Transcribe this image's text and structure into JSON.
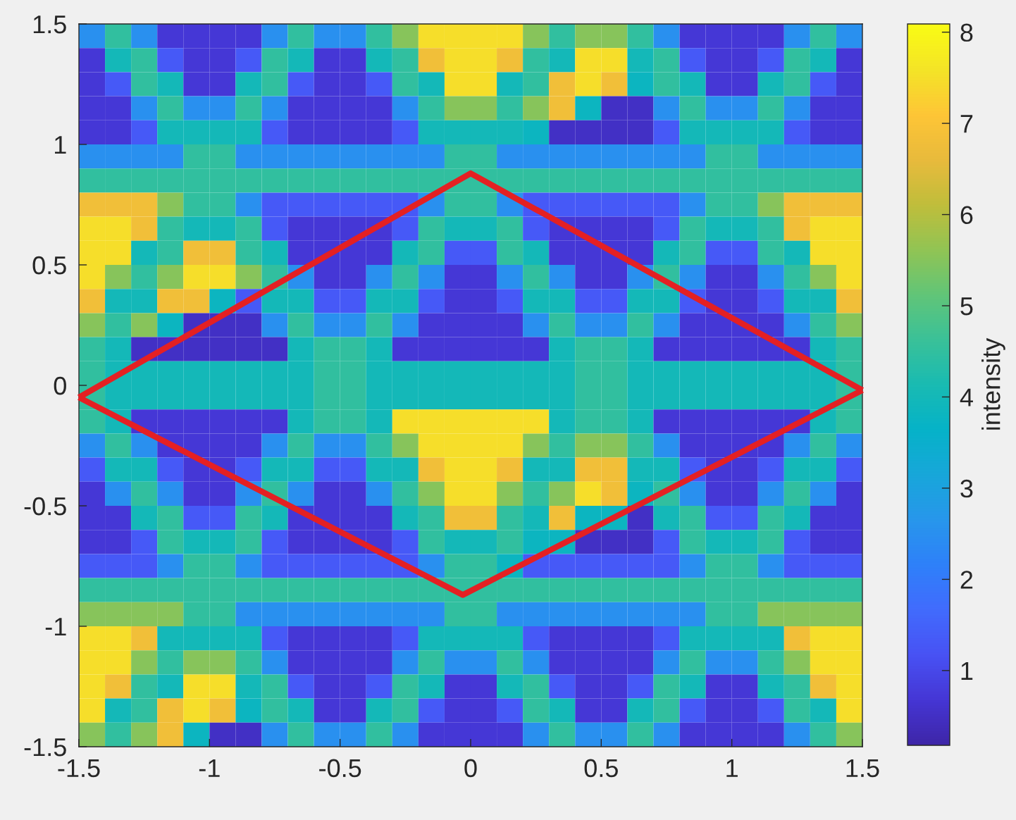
{
  "chart_data": {
    "type": "heatmap",
    "cells": [
      [
        2.5,
        4.5,
        2.5,
        0.7,
        0.7,
        0.7,
        0.7,
        2.5,
        4.5,
        2.5,
        2.5,
        4.5,
        5.5,
        7.5,
        7.5,
        7.5,
        7.5,
        5.5,
        4.5,
        5.5,
        5.5,
        4.5,
        2.5,
        0.7,
        0.7,
        0.7,
        0.7,
        2.5,
        4.5,
        2.5
      ],
      [
        0.7,
        4.0,
        4.5,
        1.3,
        0.7,
        0.7,
        1.3,
        4.5,
        4.0,
        0.7,
        0.7,
        4.0,
        4.5,
        6.8,
        7.5,
        7.5,
        6.8,
        4.5,
        4.0,
        7.5,
        7.5,
        4.0,
        4.5,
        1.3,
        0.7,
        0.7,
        1.3,
        4.5,
        4.0,
        0.7
      ],
      [
        0.7,
        1.3,
        4.5,
        4.0,
        0.7,
        0.7,
        4.0,
        4.5,
        1.3,
        0.7,
        0.7,
        1.3,
        4.5,
        4.0,
        7.5,
        7.5,
        4.0,
        4.5,
        6.8,
        7.5,
        6.8,
        3.8,
        4.5,
        4.0,
        0.7,
        0.7,
        4.0,
        4.5,
        1.3,
        0.7
      ],
      [
        0.7,
        0.7,
        2.5,
        4.5,
        2.5,
        2.5,
        4.5,
        2.5,
        0.7,
        0.7,
        0.7,
        0.7,
        2.5,
        4.5,
        5.5,
        5.5,
        4.5,
        5.5,
        6.8,
        3.8,
        0.5,
        0.5,
        2.5,
        4.5,
        2.5,
        2.5,
        4.5,
        2.5,
        0.7,
        0.7
      ],
      [
        0.7,
        0.7,
        1.3,
        4.0,
        4.0,
        4.0,
        4.0,
        1.3,
        0.7,
        0.7,
        0.7,
        0.7,
        1.3,
        4.0,
        4.0,
        4.0,
        4.0,
        3.8,
        0.5,
        0.5,
        0.5,
        0.5,
        1.3,
        4.0,
        4.0,
        4.0,
        4.0,
        1.3,
        0.7,
        0.7
      ],
      [
        2.5,
        2.5,
        2.5,
        2.5,
        4.5,
        4.5,
        2.5,
        2.5,
        2.5,
        2.5,
        2.5,
        2.5,
        2.5,
        2.5,
        4.5,
        4.5,
        2.5,
        2.5,
        2.5,
        2.5,
        2.5,
        2.5,
        2.5,
        2.5,
        4.5,
        4.5,
        2.5,
        2.5,
        2.5,
        2.5
      ],
      [
        4.5,
        4.5,
        4.5,
        4.5,
        4.5,
        4.5,
        4.5,
        4.5,
        4.5,
        4.5,
        4.5,
        4.5,
        4.5,
        4.5,
        4.5,
        4.5,
        4.5,
        4.5,
        4.5,
        4.5,
        4.5,
        4.5,
        4.5,
        4.5,
        4.5,
        4.5,
        4.5,
        4.5,
        4.5,
        4.5
      ],
      [
        6.8,
        6.8,
        6.8,
        5.5,
        4.5,
        4.5,
        2.5,
        1.3,
        1.3,
        1.3,
        1.3,
        1.3,
        1.3,
        2.5,
        4.5,
        4.5,
        2.5,
        1.3,
        1.3,
        1.3,
        1.3,
        1.3,
        1.3,
        2.5,
        4.5,
        4.5,
        5.5,
        6.8,
        6.8,
        6.8
      ],
      [
        7.5,
        7.5,
        6.8,
        4.5,
        4.0,
        4.0,
        4.5,
        1.3,
        0.7,
        0.7,
        0.7,
        0.7,
        1.3,
        4.5,
        4.0,
        4.0,
        4.5,
        1.3,
        0.7,
        0.7,
        0.7,
        0.7,
        1.3,
        4.5,
        4.0,
        4.0,
        4.5,
        6.8,
        7.5,
        7.5
      ],
      [
        7.5,
        7.5,
        4.0,
        4.5,
        6.8,
        6.8,
        4.5,
        4.0,
        0.7,
        0.7,
        0.7,
        0.7,
        4.0,
        4.5,
        1.3,
        1.3,
        4.5,
        4.0,
        0.7,
        0.7,
        0.7,
        0.7,
        4.0,
        4.5,
        1.3,
        1.3,
        4.5,
        4.0,
        7.5,
        7.5
      ],
      [
        7.5,
        5.5,
        4.5,
        5.5,
        7.5,
        7.5,
        5.5,
        4.5,
        2.5,
        0.7,
        0.7,
        2.5,
        4.5,
        2.5,
        0.7,
        0.7,
        2.5,
        4.5,
        2.5,
        0.7,
        0.7,
        2.5,
        4.5,
        2.5,
        0.7,
        0.7,
        2.5,
        4.5,
        5.5,
        7.5
      ],
      [
        6.8,
        4.0,
        4.0,
        6.8,
        6.8,
        3.8,
        1.3,
        4.0,
        4.0,
        1.3,
        1.3,
        4.0,
        4.0,
        1.3,
        0.7,
        0.7,
        1.3,
        4.0,
        4.0,
        1.3,
        1.3,
        4.0,
        4.0,
        1.3,
        0.7,
        0.7,
        1.3,
        4.0,
        4.0,
        6.8
      ],
      [
        5.5,
        4.5,
        5.5,
        3.8,
        0.5,
        0.5,
        0.5,
        2.5,
        4.5,
        2.5,
        2.5,
        4.5,
        2.5,
        0.7,
        0.7,
        0.7,
        0.7,
        2.5,
        4.5,
        2.5,
        2.5,
        4.5,
        2.5,
        0.7,
        0.7,
        0.7,
        0.7,
        2.5,
        4.5,
        5.5
      ],
      [
        4.5,
        4.0,
        0.5,
        0.5,
        0.5,
        0.5,
        0.5,
        0.5,
        4.0,
        4.5,
        4.5,
        4.0,
        0.7,
        0.7,
        0.7,
        0.7,
        0.7,
        0.7,
        4.0,
        4.5,
        4.5,
        4.0,
        0.7,
        0.7,
        0.7,
        0.7,
        0.7,
        0.7,
        4.0,
        4.5
      ],
      [
        4.5,
        4.0,
        4.0,
        4.0,
        4.0,
        4.0,
        4.0,
        4.0,
        4.0,
        4.5,
        4.5,
        4.0,
        4.0,
        4.0,
        4.0,
        4.0,
        4.0,
        4.0,
        4.0,
        4.5,
        4.5,
        4.0,
        4.0,
        4.0,
        4.0,
        4.0,
        4.0,
        4.0,
        4.0,
        4.5
      ],
      [
        4.5,
        4.0,
        4.0,
        4.0,
        4.0,
        4.0,
        4.0,
        4.0,
        4.0,
        4.5,
        4.5,
        4.0,
        4.0,
        4.0,
        4.0,
        4.0,
        4.0,
        4.0,
        4.0,
        4.5,
        4.5,
        4.0,
        4.0,
        4.0,
        4.0,
        4.0,
        4.0,
        4.0,
        4.0,
        4.5
      ],
      [
        4.5,
        4.0,
        0.7,
        0.7,
        0.7,
        0.7,
        0.7,
        0.7,
        4.0,
        4.5,
        4.5,
        4.0,
        7.5,
        7.5,
        7.5,
        7.5,
        7.5,
        7.5,
        4.0,
        4.5,
        4.5,
        4.0,
        0.7,
        0.7,
        0.7,
        0.7,
        0.7,
        0.7,
        4.0,
        4.5
      ],
      [
        2.5,
        4.5,
        2.5,
        0.7,
        0.7,
        0.7,
        0.7,
        2.5,
        4.5,
        2.5,
        2.5,
        4.5,
        5.5,
        7.5,
        7.5,
        7.5,
        7.5,
        5.5,
        4.5,
        5.5,
        5.5,
        4.5,
        2.5,
        0.7,
        0.7,
        0.7,
        0.7,
        2.5,
        4.5,
        2.5
      ],
      [
        1.3,
        4.0,
        4.0,
        1.3,
        0.7,
        0.7,
        1.3,
        4.0,
        4.0,
        1.3,
        1.3,
        4.0,
        4.0,
        6.8,
        7.5,
        7.5,
        6.8,
        4.0,
        4.0,
        6.8,
        6.8,
        4.0,
        4.0,
        1.3,
        0.7,
        0.7,
        1.3,
        4.0,
        4.0,
        1.3
      ],
      [
        0.7,
        2.5,
        4.5,
        2.5,
        0.7,
        0.7,
        2.5,
        4.5,
        2.5,
        0.7,
        0.7,
        2.5,
        4.5,
        5.5,
        7.5,
        7.5,
        5.5,
        4.5,
        5.5,
        7.5,
        6.8,
        3.8,
        4.5,
        2.5,
        0.7,
        0.7,
        2.5,
        4.5,
        2.5,
        0.7
      ],
      [
        0.7,
        0.7,
        4.0,
        4.5,
        1.3,
        1.3,
        4.5,
        4.0,
        0.7,
        0.7,
        0.7,
        0.7,
        4.0,
        4.5,
        6.8,
        6.8,
        4.5,
        4.0,
        6.8,
        3.8,
        3.8,
        0.5,
        4.0,
        4.5,
        1.3,
        1.3,
        4.5,
        4.0,
        0.7,
        0.7
      ],
      [
        0.7,
        0.7,
        1.3,
        4.5,
        4.0,
        4.0,
        4.5,
        1.3,
        0.7,
        0.7,
        0.7,
        0.7,
        1.3,
        4.5,
        4.0,
        4.0,
        4.5,
        3.8,
        3.8,
        0.5,
        0.5,
        0.5,
        1.3,
        4.5,
        4.0,
        4.0,
        4.5,
        1.3,
        0.7,
        0.7
      ],
      [
        1.3,
        1.3,
        1.3,
        2.5,
        4.5,
        4.5,
        2.5,
        1.3,
        1.3,
        1.3,
        1.3,
        1.3,
        1.3,
        2.5,
        4.5,
        4.5,
        3.8,
        1.3,
        1.3,
        1.3,
        1.3,
        1.3,
        1.3,
        2.5,
        4.5,
        4.5,
        2.5,
        1.3,
        1.3,
        1.3
      ],
      [
        4.5,
        4.5,
        4.5,
        4.5,
        4.5,
        4.5,
        4.5,
        4.5,
        4.5,
        4.5,
        4.5,
        4.5,
        4.5,
        4.5,
        4.5,
        4.5,
        4.5,
        4.5,
        4.5,
        4.5,
        4.5,
        4.5,
        4.5,
        4.5,
        4.5,
        4.5,
        4.5,
        4.5,
        4.5,
        4.5
      ],
      [
        5.5,
        5.5,
        5.5,
        5.5,
        4.5,
        4.5,
        2.5,
        2.5,
        2.5,
        2.5,
        2.5,
        2.5,
        2.5,
        2.5,
        4.5,
        4.5,
        2.5,
        2.5,
        2.5,
        2.5,
        2.5,
        2.5,
        2.5,
        2.5,
        4.5,
        4.5,
        5.5,
        5.5,
        5.5,
        5.5
      ],
      [
        7.5,
        7.5,
        6.8,
        4.0,
        4.0,
        4.0,
        4.0,
        1.3,
        0.7,
        0.7,
        0.7,
        0.7,
        1.3,
        4.0,
        4.0,
        4.0,
        4.0,
        1.3,
        0.7,
        0.7,
        0.7,
        0.7,
        1.3,
        4.0,
        4.0,
        4.0,
        4.0,
        6.8,
        7.5,
        7.5
      ],
      [
        7.5,
        7.5,
        5.5,
        4.5,
        5.5,
        5.5,
        4.5,
        2.5,
        0.7,
        0.7,
        0.7,
        0.7,
        2.5,
        4.5,
        2.5,
        2.5,
        4.5,
        2.5,
        0.7,
        0.7,
        0.7,
        0.7,
        2.5,
        4.5,
        2.5,
        2.5,
        4.5,
        5.5,
        7.5,
        7.5
      ],
      [
        7.5,
        6.8,
        4.5,
        4.0,
        7.5,
        7.5,
        4.0,
        4.5,
        1.3,
        0.7,
        0.7,
        1.3,
        4.5,
        4.0,
        0.7,
        0.7,
        4.0,
        4.5,
        1.3,
        0.7,
        0.7,
        1.3,
        4.5,
        4.0,
        0.7,
        0.7,
        4.0,
        4.5,
        6.8,
        7.5
      ],
      [
        7.5,
        4.0,
        4.5,
        6.8,
        7.5,
        6.8,
        3.8,
        4.5,
        4.0,
        0.7,
        0.7,
        4.0,
        4.5,
        1.3,
        0.7,
        0.7,
        1.3,
        4.5,
        4.0,
        0.7,
        0.7,
        4.0,
        4.5,
        1.3,
        0.7,
        0.7,
        1.3,
        4.5,
        4.0,
        7.5
      ],
      [
        5.5,
        4.5,
        5.5,
        6.8,
        3.8,
        0.5,
        0.5,
        2.5,
        4.5,
        2.5,
        2.5,
        4.5,
        2.5,
        0.7,
        0.7,
        0.7,
        0.7,
        2.5,
        4.5,
        2.5,
        2.5,
        4.5,
        2.5,
        0.7,
        0.7,
        0.7,
        0.7,
        2.5,
        4.5,
        5.5
      ]
    ],
    "clim": [
      0.18,
      8.09
    ],
    "cticks": [
      1,
      2,
      3,
      4,
      5,
      6,
      7,
      8
    ],
    "clabel": "intensity",
    "xlim": [
      -1.5,
      1.5
    ],
    "ylim": [
      -1.5,
      1.5
    ],
    "xticks": [
      -1.5,
      -1,
      -0.5,
      0,
      0.5,
      1,
      1.5
    ],
    "yticks": [
      -1.5,
      -1,
      -0.5,
      0,
      0.5,
      1,
      1.5
    ],
    "series": [
      {
        "type": "line",
        "x": [
          -1.5,
          0,
          1.5
        ],
        "values": [
          -0.05,
          0.88,
          -0.02
        ],
        "color": "#e42023"
      },
      {
        "type": "line",
        "x": [
          -1.5,
          -0.03,
          1.5
        ],
        "values": [
          -0.05,
          -0.87,
          -0.02
        ],
        "color": "#e42023"
      }
    ]
  }
}
